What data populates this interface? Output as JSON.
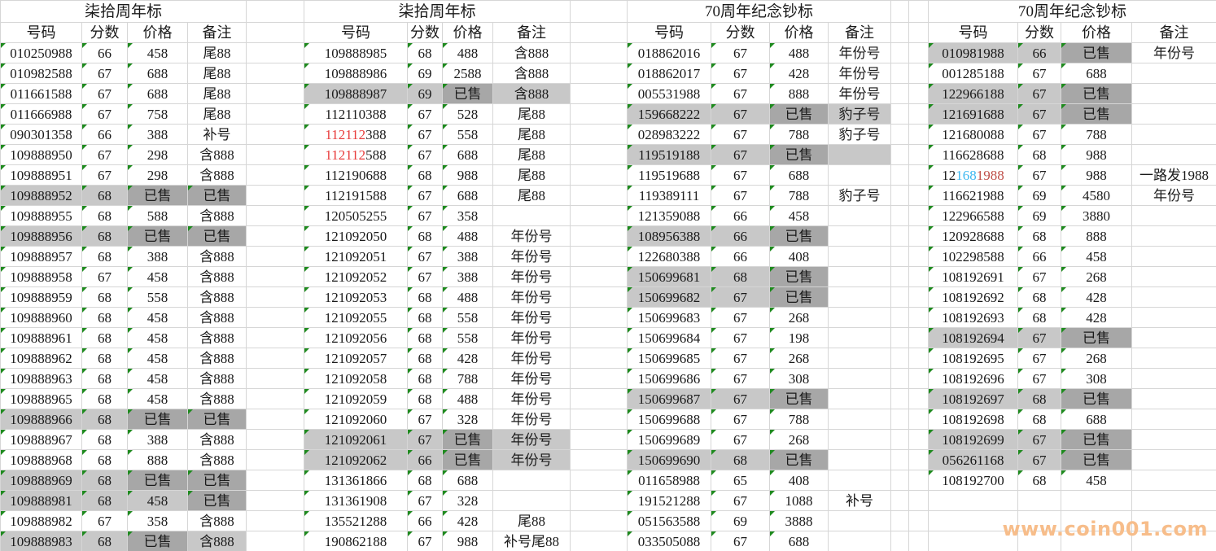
{
  "watermark": "www.coin001.com",
  "colors": {
    "text": "#1a1a1a",
    "gridline": "#d6d6d6",
    "row_highlight_gray": "#c8c8c8",
    "sold_cell_gray": "#a7a7a7",
    "red_digits": "#e83c3c",
    "blue_digits": "#3eb8f0",
    "dark_red_digits": "#bf4f49",
    "green_marker": "#1e8a1e",
    "watermark_orange": "#f7bd8a"
  },
  "groups": [
    {
      "title": "柒拾周年标",
      "headers": [
        "号码",
        "分数",
        "价格",
        "备注"
      ],
      "rows": [
        {
          "num": "010250988",
          "score": "66",
          "price": "458",
          "note": "尾88"
        },
        {
          "num": "010982588",
          "score": "67",
          "price": "688",
          "note": "尾88"
        },
        {
          "num": "011661588",
          "score": "67",
          "price": "688",
          "note": "尾88"
        },
        {
          "num": "011666988",
          "score": "67",
          "price": "758",
          "note": "尾88"
        },
        {
          "num": "090301358",
          "score": "66",
          "price": "388",
          "note": "补号"
        },
        {
          "num": "109888950",
          "score": "67",
          "price": "298",
          "note": "含888"
        },
        {
          "num": "109888951",
          "score": "67",
          "price": "298",
          "note": "含888"
        },
        {
          "num": "109888952",
          "score": "68",
          "price": "已售",
          "note": "已售",
          "bg": [
            1,
            1,
            2,
            2
          ]
        },
        {
          "num": "109888955",
          "score": "68",
          "price": "588",
          "note": "含888"
        },
        {
          "num": "109888956",
          "score": "68",
          "price": "已售",
          "note": "已售",
          "bg": [
            1,
            1,
            2,
            2
          ]
        },
        {
          "num": "109888957",
          "score": "68",
          "price": "388",
          "note": "含888"
        },
        {
          "num": "109888958",
          "score": "67",
          "price": "458",
          "note": "含888"
        },
        {
          "num": "109888959",
          "score": "68",
          "price": "558",
          "note": "含888"
        },
        {
          "num": "109888960",
          "score": "68",
          "price": "458",
          "note": "含888"
        },
        {
          "num": "109888961",
          "score": "68",
          "price": "458",
          "note": "含888"
        },
        {
          "num": "109888962",
          "score": "68",
          "price": "458",
          "note": "含888"
        },
        {
          "num": "109888963",
          "score": "68",
          "price": "458",
          "note": "含888"
        },
        {
          "num": "109888965",
          "score": "68",
          "price": "458",
          "note": "含888"
        },
        {
          "num": "109888966",
          "score": "68",
          "price": "已售",
          "note": "已售",
          "bg": [
            1,
            1,
            2,
            2
          ]
        },
        {
          "num": "109888967",
          "score": "68",
          "price": "388",
          "note": "含888"
        },
        {
          "num": "109888968",
          "score": "68",
          "price": "888",
          "note": "含888"
        },
        {
          "num": "109888969",
          "score": "68",
          "price": "已售",
          "note": "已售",
          "bg": [
            1,
            1,
            2,
            2
          ]
        },
        {
          "num": "109888981",
          "score": "68",
          "price": "458",
          "note": "已售",
          "bg": [
            1,
            1,
            1,
            2
          ]
        },
        {
          "num": "109888982",
          "score": "67",
          "price": "358",
          "note": "含888"
        },
        {
          "num": "109888983",
          "score": "68",
          "price": "已售",
          "note": "含888",
          "bg": [
            1,
            1,
            2,
            1
          ]
        }
      ]
    },
    {
      "title": "柒拾周年标",
      "headers": [
        "号码",
        "分数",
        "价格",
        "备注"
      ],
      "rows": [
        {
          "num": "109888985",
          "score": "68",
          "price": "488",
          "note": "含888"
        },
        {
          "num": "109888986",
          "score": "69",
          "price": "2588",
          "note": "含888"
        },
        {
          "num": "109888987",
          "score": "69",
          "price": "已售",
          "note": "含888",
          "bg": [
            1,
            1,
            2,
            1
          ]
        },
        {
          "num": "112110388",
          "score": "67",
          "price": "528",
          "note": "尾88"
        },
        {
          "num": "112112388",
          "score": "67",
          "price": "558",
          "note": "尾88",
          "num_parts": [
            [
              "112112",
              "red"
            ],
            [
              "388",
              "text"
            ]
          ]
        },
        {
          "num": "112112588",
          "score": "67",
          "price": "688",
          "note": "尾88",
          "num_parts": [
            [
              "112112",
              "red"
            ],
            [
              "588",
              "text"
            ]
          ]
        },
        {
          "num": "112190688",
          "score": "68",
          "price": "988",
          "note": "尾88"
        },
        {
          "num": "112191588",
          "score": "67",
          "price": "688",
          "note": "尾88"
        },
        {
          "num": "120505255",
          "score": "67",
          "price": "358",
          "note": ""
        },
        {
          "num": "121092050",
          "score": "68",
          "price": "488",
          "note": "年份号"
        },
        {
          "num": "121092051",
          "score": "67",
          "price": "388",
          "note": "年份号"
        },
        {
          "num": "121092052",
          "score": "67",
          "price": "388",
          "note": "年份号"
        },
        {
          "num": "121092053",
          "score": "68",
          "price": "488",
          "note": "年份号"
        },
        {
          "num": "121092055",
          "score": "68",
          "price": "558",
          "note": "年份号"
        },
        {
          "num": "121092056",
          "score": "68",
          "price": "558",
          "note": "年份号"
        },
        {
          "num": "121092057",
          "score": "68",
          "price": "428",
          "note": "年份号"
        },
        {
          "num": "121092058",
          "score": "68",
          "price": "788",
          "note": "年份号"
        },
        {
          "num": "121092059",
          "score": "68",
          "price": "488",
          "note": "年份号"
        },
        {
          "num": "121092060",
          "score": "67",
          "price": "328",
          "note": "年份号"
        },
        {
          "num": "121092061",
          "score": "67",
          "price": "已售",
          "note": "年份号",
          "bg": [
            1,
            1,
            2,
            1
          ]
        },
        {
          "num": "121092062",
          "score": "66",
          "price": "已售",
          "note": "年份号",
          "bg": [
            1,
            1,
            2,
            1
          ]
        },
        {
          "num": "131361866",
          "score": "68",
          "price": "688",
          "note": ""
        },
        {
          "num": "131361908",
          "score": "67",
          "price": "328",
          "note": ""
        },
        {
          "num": "135521288",
          "score": "66",
          "price": "428",
          "note": "尾88"
        },
        {
          "num": "190862188",
          "score": "67",
          "price": "988",
          "note": "补号尾88"
        }
      ]
    },
    {
      "title": "70周年纪念钞标",
      "headers": [
        "号码",
        "分数",
        "价格",
        "备注"
      ],
      "rows": [
        {
          "num": "018862016",
          "score": "67",
          "price": "488",
          "note": "年份号"
        },
        {
          "num": "018862017",
          "score": "67",
          "price": "428",
          "note": "年份号"
        },
        {
          "num": "005531988",
          "score": "67",
          "price": "888",
          "note": "年份号"
        },
        {
          "num": "159668222",
          "score": "67",
          "price": "已售",
          "note": "豹子号",
          "bg": [
            1,
            1,
            2,
            1
          ]
        },
        {
          "num": "028983222",
          "score": "67",
          "price": "788",
          "note": "豹子号"
        },
        {
          "num": "119519188",
          "score": "67",
          "price": "已售",
          "note": "",
          "bg": [
            1,
            1,
            2,
            1
          ]
        },
        {
          "num": "119519688",
          "score": "67",
          "price": "688",
          "note": ""
        },
        {
          "num": "119389111",
          "score": "67",
          "price": "788",
          "note": "豹子号"
        },
        {
          "num": "121359088",
          "score": "66",
          "price": "458",
          "note": ""
        },
        {
          "num": "108956388",
          "score": "66",
          "price": "已售",
          "note": "",
          "bg": [
            1,
            1,
            2,
            0
          ]
        },
        {
          "num": "122680388",
          "score": "66",
          "price": "408",
          "note": ""
        },
        {
          "num": "150699681",
          "score": "68",
          "price": "已售",
          "note": "",
          "bg": [
            1,
            1,
            2,
            0
          ]
        },
        {
          "num": "150699682",
          "score": "67",
          "price": "已售",
          "note": "",
          "bg": [
            1,
            1,
            2,
            0
          ]
        },
        {
          "num": "150699683",
          "score": "67",
          "price": "268",
          "note": ""
        },
        {
          "num": "150699684",
          "score": "67",
          "price": "198",
          "note": ""
        },
        {
          "num": "150699685",
          "score": "67",
          "price": "268",
          "note": ""
        },
        {
          "num": "150699686",
          "score": "67",
          "price": "308",
          "note": ""
        },
        {
          "num": "150699687",
          "score": "67",
          "price": "已售",
          "note": "",
          "bg": [
            1,
            1,
            2,
            0
          ]
        },
        {
          "num": "150699688",
          "score": "67",
          "price": "788",
          "note": ""
        },
        {
          "num": "150699689",
          "score": "67",
          "price": "268",
          "note": ""
        },
        {
          "num": "150699690",
          "score": "68",
          "price": "已售",
          "note": "",
          "bg": [
            1,
            1,
            2,
            0
          ]
        },
        {
          "num": "011658988",
          "score": "65",
          "price": "408",
          "note": ""
        },
        {
          "num": "191521288",
          "score": "67",
          "price": "1088",
          "note": "补号"
        },
        {
          "num": "051563588",
          "score": "69",
          "price": "3888",
          "note": ""
        },
        {
          "num": "033505088",
          "score": "67",
          "price": "688",
          "note": ""
        }
      ]
    },
    {
      "title": "70周年纪念钞标",
      "headers": [
        "号码",
        "分数",
        "价格",
        "备注"
      ],
      "rows": [
        {
          "num": "010981988",
          "score": "66",
          "price": "已售",
          "note": "年份号",
          "bg": [
            1,
            1,
            2,
            0
          ]
        },
        {
          "num": "001285188",
          "score": "67",
          "price": "688",
          "note": ""
        },
        {
          "num": "122966188",
          "score": "67",
          "price": "已售",
          "note": "",
          "bg": [
            1,
            1,
            2,
            0
          ]
        },
        {
          "num": "121691688",
          "score": "67",
          "price": "已售",
          "note": "",
          "bg": [
            1,
            1,
            2,
            0
          ]
        },
        {
          "num": "121680088",
          "score": "67",
          "price": "788",
          "note": ""
        },
        {
          "num": "116628688",
          "score": "68",
          "price": "988",
          "note": ""
        },
        {
          "num": "121681988",
          "score": "67",
          "price": "988",
          "note": "一路发1988",
          "num_parts": [
            [
              "12",
              "text"
            ],
            [
              "168",
              "blue"
            ],
            [
              "1988",
              "darkred"
            ]
          ]
        },
        {
          "num": "116621988",
          "score": "69",
          "price": "4580",
          "note": "年份号"
        },
        {
          "num": "122966588",
          "score": "69",
          "price": "3880",
          "note": ""
        },
        {
          "num": "120928688",
          "score": "68",
          "price": "888",
          "note": ""
        },
        {
          "num": "102298588",
          "score": "66",
          "price": "458",
          "note": ""
        },
        {
          "num": "108192691",
          "score": "67",
          "price": "268",
          "note": ""
        },
        {
          "num": "108192692",
          "score": "68",
          "price": "428",
          "note": ""
        },
        {
          "num": "108192693",
          "score": "68",
          "price": "428",
          "note": ""
        },
        {
          "num": "108192694",
          "score": "67",
          "price": "已售",
          "note": "",
          "bg": [
            1,
            1,
            2,
            0
          ]
        },
        {
          "num": "108192695",
          "score": "67",
          "price": "268",
          "note": ""
        },
        {
          "num": "108192696",
          "score": "67",
          "price": "308",
          "note": ""
        },
        {
          "num": "108192697",
          "score": "68",
          "price": "已售",
          "note": "",
          "bg": [
            1,
            1,
            2,
            0
          ]
        },
        {
          "num": "108192698",
          "score": "68",
          "price": "688",
          "note": ""
        },
        {
          "num": "108192699",
          "score": "67",
          "price": "已售",
          "note": "",
          "bg": [
            1,
            1,
            2,
            0
          ]
        },
        {
          "num": "056261168",
          "score": "67",
          "price": "已售",
          "note": "",
          "bg": [
            1,
            1,
            2,
            0
          ]
        },
        {
          "num": "108192700",
          "score": "68",
          "price": "458",
          "note": ""
        }
      ]
    }
  ]
}
